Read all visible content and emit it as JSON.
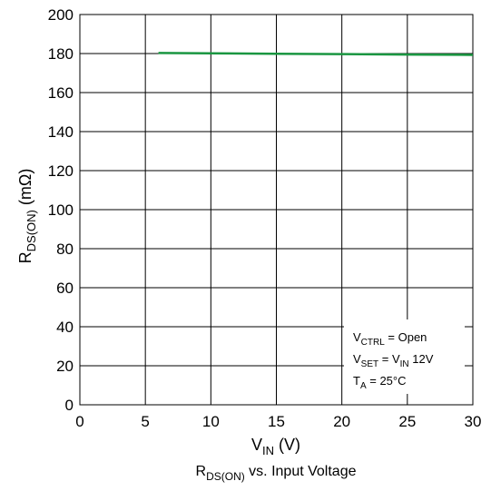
{
  "chart_data": {
    "type": "line",
    "x_range": [
      0,
      30
    ],
    "y_range": [
      0,
      200
    ],
    "x_ticks": [
      0,
      5,
      10,
      15,
      20,
      25,
      30
    ],
    "y_ticks": [
      0,
      20,
      40,
      60,
      80,
      100,
      120,
      140,
      160,
      180,
      200
    ],
    "grid": true,
    "x_label": {
      "main": "V",
      "sub": "IN",
      "suffix": " (V)"
    },
    "y_label": {
      "main": "R",
      "sub": "DS(ON)",
      "suffix": " (mΩ)"
    },
    "caption": {
      "main": "R",
      "sub": "DS(ON)",
      "suffix": " vs. Input Voltage"
    },
    "series": [
      {
        "color": "#1a9641",
        "x": [
          6,
          10,
          15,
          20,
          25,
          30
        ],
        "y": [
          180.3,
          180.1,
          179.9,
          179.7,
          179.5,
          179.3
        ]
      }
    ],
    "annotation": {
      "lines": [
        {
          "main": "V",
          "sub": "CTRL",
          "suffix": " = Open"
        },
        {
          "main": "V",
          "sub": "SET",
          "mid": " = V",
          "sub2": "IN",
          "suffix": " 12V"
        },
        {
          "main": "T",
          "sub": "A",
          "suffix": " = 25°C"
        }
      ]
    }
  }
}
